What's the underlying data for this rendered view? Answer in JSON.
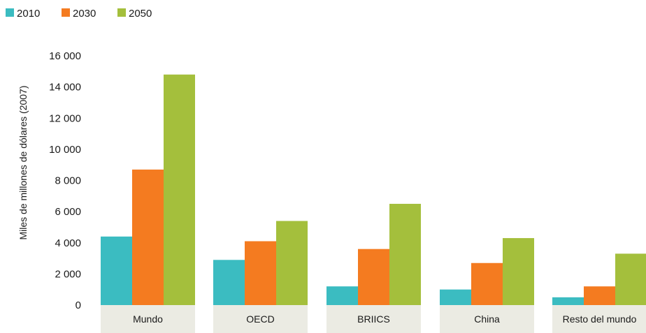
{
  "chart_data": {
    "type": "bar",
    "categories": [
      "Mundo",
      "OECD",
      "BRIICS",
      "China",
      "Resto del mundo"
    ],
    "series": [
      {
        "name": "2010",
        "color": "#3bbcc1",
        "values": [
          4400,
          2900,
          1200,
          1000,
          500
        ]
      },
      {
        "name": "2030",
        "color": "#f47b20",
        "values": [
          8700,
          4100,
          3600,
          2700,
          1200
        ]
      },
      {
        "name": "2050",
        "color": "#a4bf3c",
        "values": [
          14800,
          5400,
          6500,
          4300,
          3300
        ]
      }
    ],
    "ylabel": "Miles de millones de dólares (2007)",
    "ylim": [
      0,
      16000
    ],
    "yticks": [
      0,
      2000,
      4000,
      6000,
      8000,
      10000,
      12000,
      14000,
      16000
    ],
    "ytick_labels": [
      "0",
      "2 000",
      "4 000",
      "6 000",
      "8 000",
      "10 000",
      "12 000",
      "14 000",
      "16 000"
    ],
    "grid": false,
    "legend_position": "top-left",
    "category_band_color": "#ebebe3"
  }
}
